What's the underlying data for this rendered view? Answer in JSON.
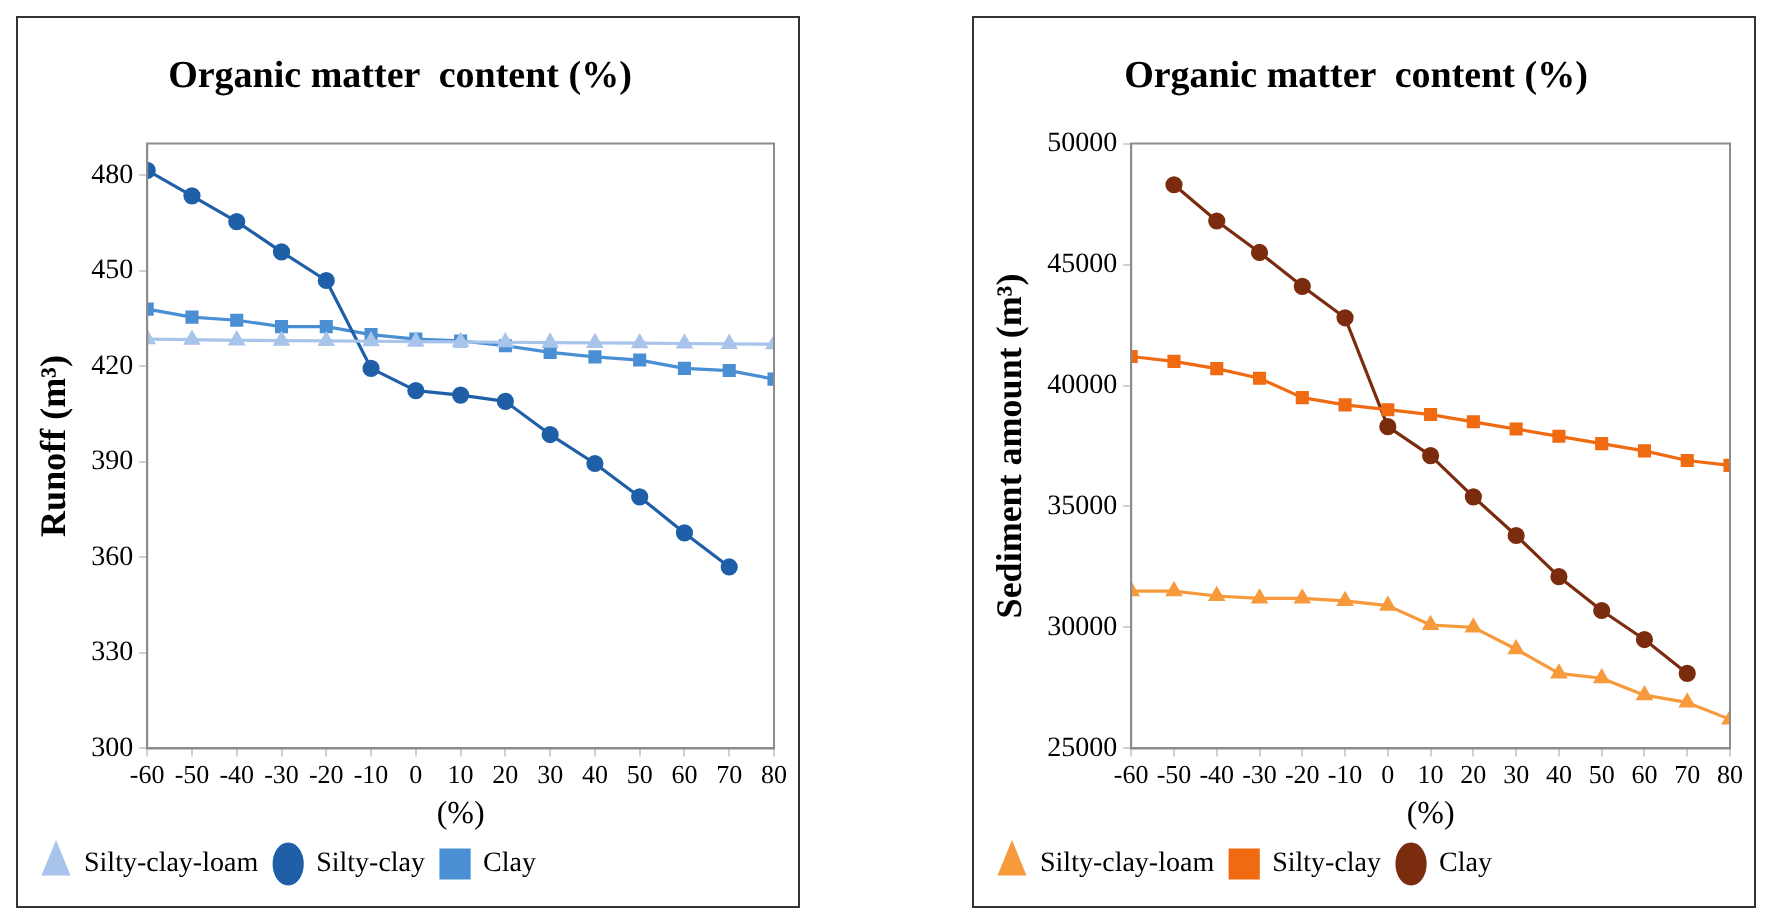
{
  "chart_data": [
    {
      "type": "line",
      "title": "Organic matter  content (%)",
      "xlabel": "(%)",
      "ylabel": "Runoff (m³)",
      "x": [
        -60,
        -50,
        -40,
        -30,
        -20,
        -10,
        0,
        10,
        20,
        30,
        40,
        50,
        60,
        70,
        80
      ],
      "xlim": [
        -60,
        80
      ],
      "xticks": [
        -60,
        -50,
        -40,
        -30,
        -20,
        -10,
        0,
        10,
        20,
        30,
        40,
        50,
        60,
        70,
        80
      ],
      "ylim": [
        300,
        490
      ],
      "yticks": [
        300,
        330,
        360,
        390,
        420,
        450,
        480
      ],
      "grid": false,
      "legend": "bottom left",
      "series": [
        {
          "name": "Clay",
          "color": "#4a8fd4",
          "marker": "square",
          "values": [
            438,
            435.5,
            434.5,
            432.5,
            432.5,
            430,
            428.6,
            428,
            426.5,
            424.4,
            423,
            422,
            419.4,
            418.7,
            416
          ]
        },
        {
          "name": "Silty-clay",
          "color": "#1f5fa8",
          "marker": "circle",
          "values": [
            481.6,
            473.6,
            465.5,
            456,
            447,
            419.4,
            412.4,
            411,
            409,
            398.6,
            389.5,
            379,
            367.7,
            357,
            null
          ]
        },
        {
          "name": "Silty-clay-loam",
          "color": "#a9c4ea",
          "marker": "triangle",
          "values": [
            428.6,
            428.4,
            428.2,
            428.1,
            428,
            427.9,
            427.8,
            427.7,
            427.6,
            427.5,
            427.4,
            427.3,
            427.2,
            427.1,
            427
          ]
        }
      ]
    },
    {
      "type": "line",
      "title": "Organic matter  content (%)",
      "xlabel": "(%)",
      "ylabel": "Sediment amount (m³)",
      "x": [
        -60,
        -50,
        -40,
        -30,
        -20,
        -10,
        0,
        10,
        20,
        30,
        40,
        50,
        60,
        70,
        80
      ],
      "xlim": [
        -60,
        80
      ],
      "xticks": [
        -60,
        -50,
        -40,
        -30,
        -20,
        -10,
        0,
        10,
        20,
        30,
        40,
        50,
        60,
        70,
        80
      ],
      "ylim": [
        25000,
        50000
      ],
      "yticks": [
        25000,
        30000,
        35000,
        40000,
        45000,
        50000
      ],
      "grid": false,
      "legend": "bottom left",
      "series": [
        {
          "name": "Clay",
          "color": "#7b2c0e",
          "marker": "circle",
          "values": [
            null,
            48300,
            46800,
            45500,
            44100,
            42800,
            38300,
            37100,
            35400,
            33800,
            32100,
            30700,
            29500,
            28100,
            null
          ]
        },
        {
          "name": "Silty-clay",
          "color": "#f06a12",
          "marker": "square",
          "values": [
            41200,
            41000,
            40700,
            40300,
            39500,
            39200,
            39000,
            38800,
            38500,
            38200,
            37900,
            37600,
            37300,
            36900,
            36700
          ]
        },
        {
          "name": "Silty-clay-loam",
          "color": "#f79a3c",
          "marker": "triangle",
          "values": [
            31500,
            31500,
            31300,
            31200,
            31200,
            31100,
            30900,
            30100,
            30000,
            29100,
            28100,
            27900,
            27200,
            26900,
            26200
          ]
        }
      ]
    }
  ]
}
